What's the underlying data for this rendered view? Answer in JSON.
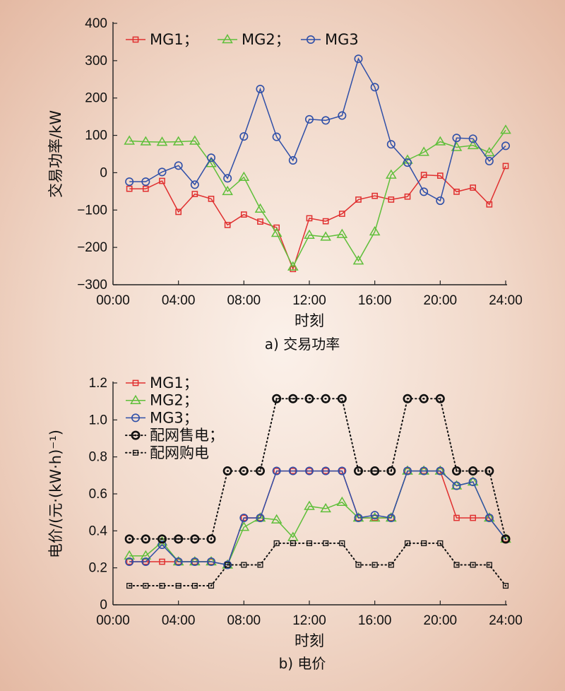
{
  "chart_data": [
    {
      "type": "line",
      "caption": "a) 交易功率",
      "xlabel": "时刻",
      "ylabel": "交易功率/kW",
      "xlim": [
        0,
        24
      ],
      "ylim": [
        -300,
        400
      ],
      "xticks": [
        0,
        4,
        8,
        12,
        16,
        20,
        24
      ],
      "xtick_labels": [
        "00:00",
        "04:00",
        "08:00",
        "12:00",
        "16:00",
        "20:00",
        "24:00"
      ],
      "yticks": [
        -300,
        -200,
        -100,
        0,
        100,
        200,
        300,
        400
      ],
      "ytick_labels": [
        "−300",
        "−200",
        "−100",
        "0",
        "100",
        "200",
        "300",
        "400"
      ],
      "legend": "top, horizontal",
      "x": [
        1,
        2,
        3,
        4,
        5,
        6,
        7,
        8,
        9,
        10,
        11,
        12,
        13,
        14,
        15,
        16,
        17,
        18,
        19,
        20,
        21,
        22,
        23,
        24
      ],
      "series": [
        {
          "name": "MG1；",
          "legend_label": "MG1；",
          "color": "#e03030",
          "marker": "square",
          "values": [
            -43,
            -43,
            -22,
            -105,
            -57,
            -70,
            -140,
            -112,
            -131,
            -147,
            -258,
            -122,
            -130,
            -110,
            -72,
            -62,
            -72,
            -64,
            -6,
            -8,
            -51,
            -40,
            -85,
            18
          ]
        },
        {
          "name": "MG2；",
          "legend_label": "MG2；",
          "color": "#5fbf3a",
          "marker": "triangle",
          "values": [
            85,
            83,
            82,
            83,
            85,
            25,
            -50,
            -12,
            -97,
            -162,
            -252,
            -167,
            -172,
            -165,
            -236,
            -158,
            -6,
            34,
            55,
            83,
            68,
            73,
            54,
            114
          ]
        },
        {
          "name": "MG3",
          "legend_label": "MG3",
          "color": "#2f4fa8",
          "marker": "circle",
          "values": [
            -24,
            -24,
            2,
            19,
            -32,
            40,
            -15,
            97,
            224,
            96,
            33,
            143,
            140,
            153,
            305,
            229,
            76,
            27,
            -51,
            -75,
            93,
            91,
            31,
            72
          ]
        }
      ]
    },
    {
      "type": "line",
      "caption": "b) 电价",
      "xlabel": "时刻",
      "ylabel": "电价/(元·(kW·h)⁻¹)",
      "xlim": [
        0,
        24
      ],
      "ylim": [
        0,
        1.2
      ],
      "xticks": [
        0,
        4,
        8,
        12,
        16,
        20,
        24
      ],
      "xtick_labels": [
        "00:00",
        "04:00",
        "08:00",
        "12:00",
        "16:00",
        "20:00",
        "24:00"
      ],
      "yticks": [
        0,
        0.2,
        0.4,
        0.6,
        0.8,
        1.0,
        1.2
      ],
      "ytick_labels": [
        "0",
        "0.2",
        "0.4",
        "0.6",
        "0.8",
        "1.0",
        "1.2"
      ],
      "legend": "top-left, vertical",
      "x": [
        1,
        2,
        3,
        4,
        5,
        6,
        7,
        8,
        9,
        10,
        11,
        12,
        13,
        14,
        15,
        16,
        17,
        18,
        19,
        20,
        21,
        22,
        23,
        24
      ],
      "series": [
        {
          "name": "MG1；",
          "legend_label": "MG1；",
          "color": "#e03030",
          "marker": "square",
          "style": "solid",
          "values": [
            0.233,
            0.233,
            0.233,
            0.233,
            0.233,
            0.233,
            0.216,
            0.47,
            0.47,
            0.724,
            0.724,
            0.724,
            0.724,
            0.724,
            0.47,
            0.47,
            0.47,
            0.724,
            0.724,
            0.724,
            0.47,
            0.47,
            0.47,
            0.356
          ]
        },
        {
          "name": "MG2；",
          "legend_label": "MG2；",
          "color": "#5fbf3a",
          "marker": "triangle",
          "style": "solid",
          "values": [
            0.265,
            0.265,
            0.34,
            0.233,
            0.233,
            0.233,
            0.216,
            0.42,
            0.47,
            0.46,
            0.365,
            0.533,
            0.52,
            0.555,
            0.47,
            0.47,
            0.47,
            0.724,
            0.724,
            0.724,
            0.644,
            0.665,
            0.47,
            0.356
          ]
        },
        {
          "name": "MG3；",
          "legend_label": "MG3；",
          "color": "#2f4fa8",
          "marker": "circle",
          "style": "solid",
          "values": [
            0.233,
            0.233,
            0.325,
            0.233,
            0.233,
            0.233,
            0.216,
            0.47,
            0.47,
            0.724,
            0.724,
            0.724,
            0.724,
            0.724,
            0.47,
            0.485,
            0.47,
            0.724,
            0.724,
            0.724,
            0.644,
            0.665,
            0.47,
            0.356
          ]
        },
        {
          "name": "配网售电；",
          "legend_label": "配网售电；",
          "color": "#111111",
          "marker": "bullseye",
          "style": "dotted",
          "values": [
            0.356,
            0.356,
            0.356,
            0.356,
            0.356,
            0.356,
            0.724,
            0.724,
            0.724,
            1.115,
            1.115,
            1.115,
            1.115,
            1.115,
            0.724,
            0.724,
            0.724,
            1.115,
            1.115,
            1.115,
            0.724,
            0.724,
            0.724,
            0.356
          ]
        },
        {
          "name": "配网购电",
          "legend_label": "配网购电",
          "color": "#111111",
          "marker": "dotsquare",
          "style": "dotted",
          "values": [
            0.103,
            0.103,
            0.103,
            0.103,
            0.103,
            0.103,
            0.216,
            0.216,
            0.216,
            0.333,
            0.333,
            0.333,
            0.333,
            0.333,
            0.216,
            0.216,
            0.216,
            0.333,
            0.333,
            0.333,
            0.216,
            0.216,
            0.216,
            0.103
          ]
        }
      ]
    }
  ]
}
